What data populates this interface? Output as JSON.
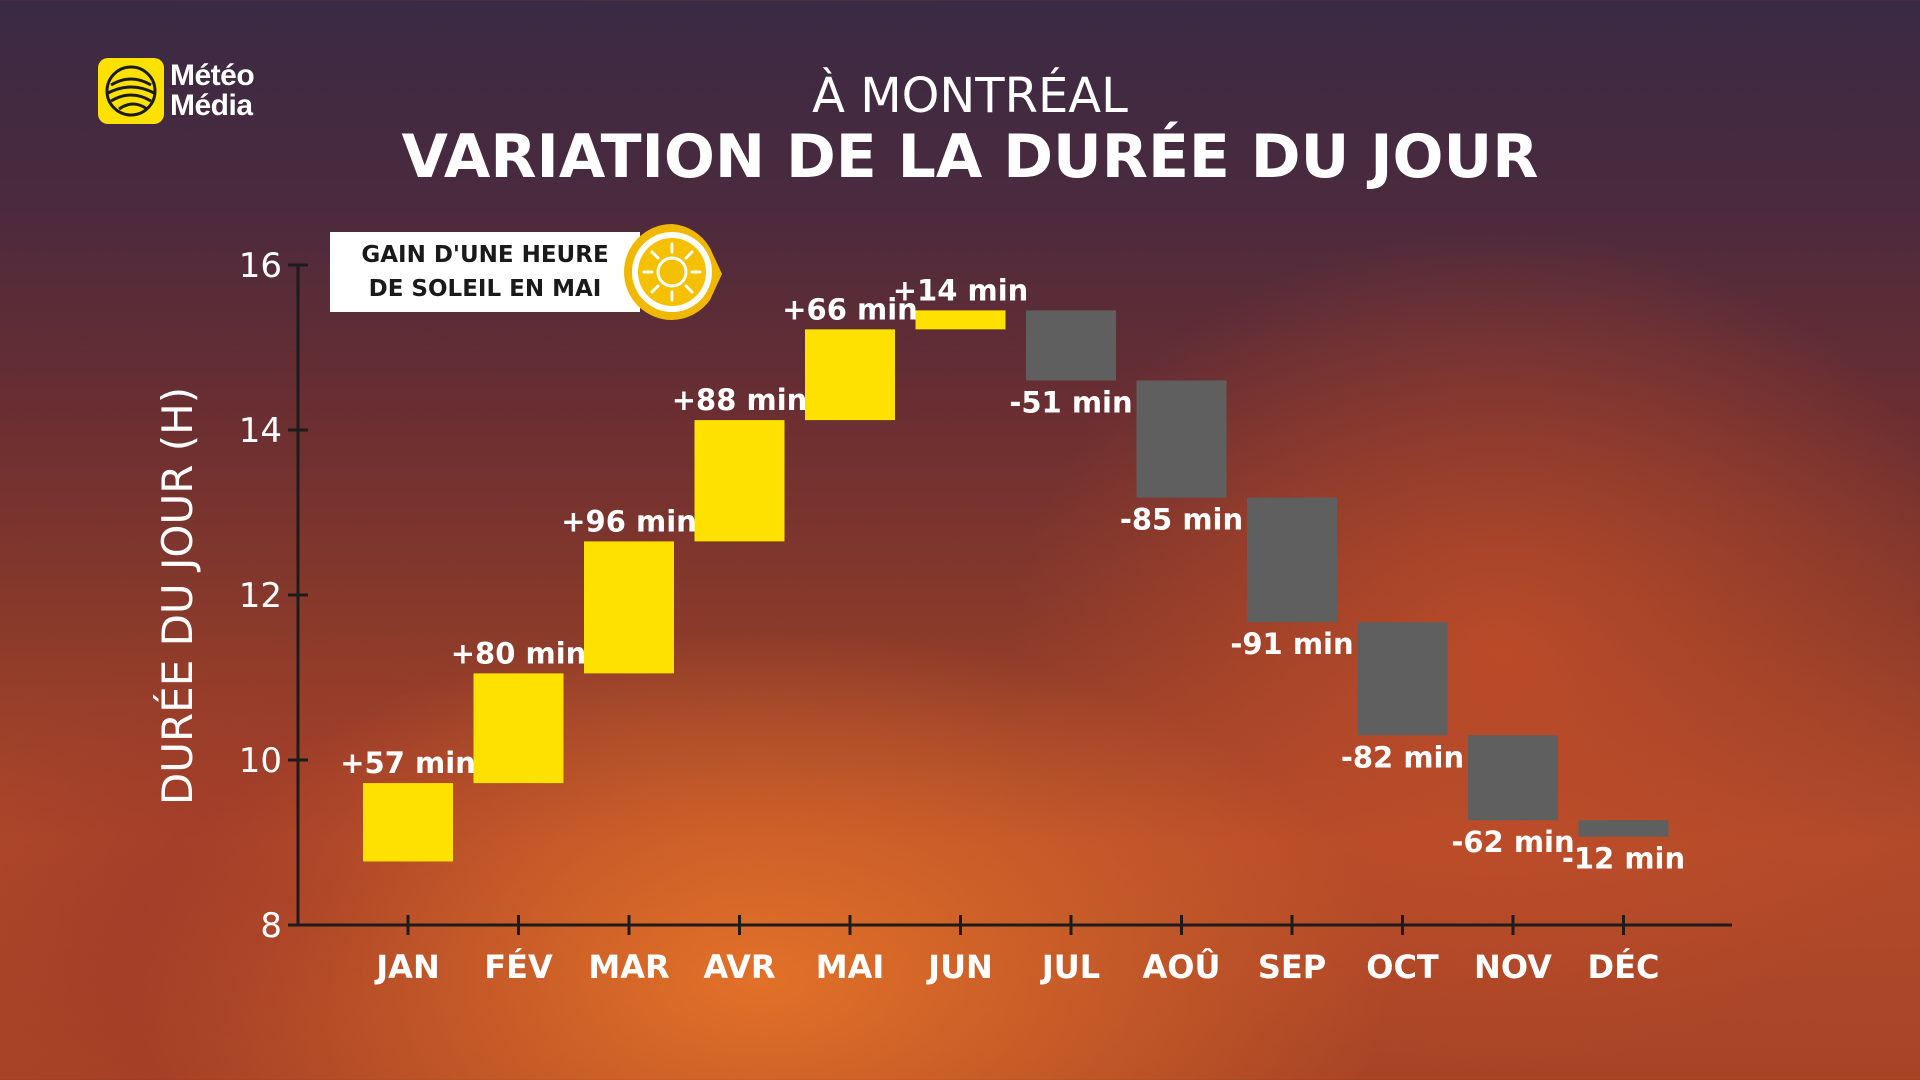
{
  "logo": {
    "line1": "Météo",
    "line2": "Média"
  },
  "header": {
    "subtitle": "À MONTRÉAL",
    "title": "VARIATION DE LA DURÉE DU JOUR"
  },
  "callout": {
    "line1": "GAIN D'UNE HEURE",
    "line2": "DE SOLEIL EN MAI"
  },
  "colors": {
    "gain": "#ffe100",
    "loss": "#5f5f5f",
    "axis": "#1c1c1c",
    "text": "#ffffff"
  },
  "chart_data": {
    "type": "bar",
    "subtype": "floating-waterfall",
    "title": "VARIATION DE LA DURÉE DU JOUR",
    "subtitle": "À MONTRÉAL",
    "xlabel": "",
    "ylabel": "DURÉE DU JOUR (H)",
    "ylim": [
      8,
      16
    ],
    "yticks": [
      8,
      10,
      12,
      14,
      16
    ],
    "grid": false,
    "categories": [
      "JAN",
      "FÉV",
      "MAR",
      "AVR",
      "MAI",
      "JUN",
      "JUL",
      "AOÛ",
      "SEP",
      "OCT",
      "NOV",
      "DÉC"
    ],
    "ranges": [
      [
        8.77,
        9.72
      ],
      [
        9.72,
        11.05
      ],
      [
        11.05,
        12.65
      ],
      [
        12.65,
        14.12
      ],
      [
        14.12,
        15.22
      ],
      [
        15.22,
        15.45
      ],
      [
        15.45,
        14.6
      ],
      [
        14.6,
        13.18
      ],
      [
        13.18,
        11.67
      ],
      [
        11.67,
        10.3
      ],
      [
        10.3,
        9.27
      ],
      [
        9.27,
        9.07
      ]
    ],
    "labels": [
      "+57 min",
      "+80 min",
      "+96 min",
      "+88 min",
      "+66 min",
      "+14 min",
      "-51 min",
      "-85 min",
      "-91 min",
      "-82 min",
      "-62 min",
      "-12 min"
    ]
  }
}
